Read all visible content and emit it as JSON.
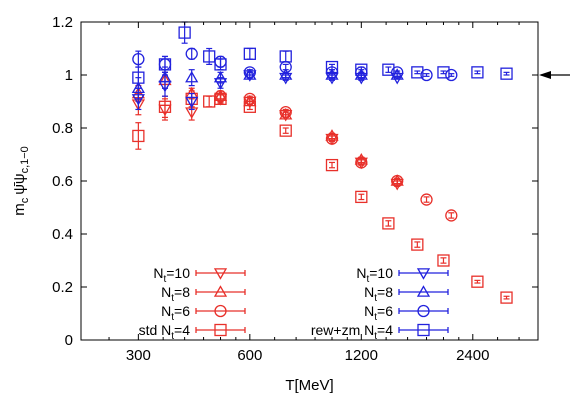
{
  "chart_data": {
    "type": "scatter",
    "xlabel": "T[MeV]",
    "ylabel_parts": {
      "m": "m",
      "c1": "c",
      "psi": "ψ̄ψ",
      "sub": "c,1−0"
    },
    "x_scale": "log",
    "xlim": [
      210,
      3600
    ],
    "ylim": [
      0,
      1.2
    ],
    "x_ticks": [
      300,
      600,
      1200,
      2400
    ],
    "x_tick_labels": [
      "300",
      "600",
      "1200",
      "2400"
    ],
    "y_ticks": [
      0,
      0.2,
      0.4,
      0.6,
      0.8,
      1,
      1.2
    ],
    "y_tick_labels": [
      "0",
      "0.2",
      "0.4",
      "0.6",
      "0.8",
      "1",
      "1.2"
    ],
    "grid": false,
    "reference_arrow_y": 1.0,
    "colors": {
      "std": "#e8302a",
      "rew": "#2222dd"
    },
    "legend": {
      "placement": "bottom",
      "entries": [
        {
          "prefix": "",
          "n": "N",
          "t": "t",
          "rest": "=10",
          "marker": "triangle-down",
          "group": "std"
        },
        {
          "prefix": "",
          "n": "N",
          "t": "t",
          "rest": "=8",
          "marker": "triangle-up",
          "group": "std"
        },
        {
          "prefix": "",
          "n": "N",
          "t": "t",
          "rest": "=6",
          "marker": "circle",
          "group": "std"
        },
        {
          "prefix": "std ",
          "n": "N",
          "t": "t",
          "rest": "=4",
          "marker": "square",
          "group": "std"
        },
        {
          "prefix": "",
          "n": "N",
          "t": "t",
          "rest": "=10",
          "marker": "triangle-down",
          "group": "rew"
        },
        {
          "prefix": "",
          "n": "N",
          "t": "t",
          "rest": "=8",
          "marker": "triangle-up",
          "group": "rew"
        },
        {
          "prefix": "",
          "n": "N",
          "t": "t",
          "rest": "=6",
          "marker": "circle",
          "group": "rew"
        },
        {
          "prefix": "rew+zm ",
          "n": "N",
          "t": "t",
          "rest": "=4",
          "marker": "square",
          "group": "rew"
        }
      ]
    },
    "series": [
      {
        "group": "std",
        "marker": "square",
        "points": [
          [
            300,
            0.77,
            0.05
          ],
          [
            354,
            0.88,
            0.04
          ],
          [
            418,
            0.91,
            0.03
          ],
          [
            466,
            0.9,
            0.02
          ],
          [
            500,
            0.91,
            0.015
          ],
          [
            600,
            0.88,
            0.01
          ],
          [
            750,
            0.79,
            0.01
          ],
          [
            1000,
            0.66,
            0.01
          ],
          [
            1200,
            0.54,
            0.01
          ],
          [
            1420,
            0.44,
            0.01
          ],
          [
            1700,
            0.36,
            0.01
          ],
          [
            2000,
            0.3,
            0.01
          ],
          [
            2470,
            0.22,
            0.005
          ],
          [
            2960,
            0.16,
            0.005
          ]
        ]
      },
      {
        "group": "std",
        "marker": "circle",
        "points": [
          [
            500,
            0.92,
            0.01
          ],
          [
            600,
            0.91,
            0.01
          ],
          [
            750,
            0.86,
            0.01
          ],
          [
            1000,
            0.76,
            0.01
          ],
          [
            1200,
            0.67,
            0.01
          ],
          [
            1500,
            0.6,
            0.01
          ],
          [
            1800,
            0.53,
            0.01
          ],
          [
            2100,
            0.47,
            0.01
          ]
        ]
      },
      {
        "group": "std",
        "marker": "triangle-up",
        "points": [
          [
            300,
            0.93,
            0.03
          ],
          [
            354,
            0.98,
            0.03
          ],
          [
            418,
            0.93,
            0.02
          ],
          [
            500,
            0.92,
            0.02
          ],
          [
            600,
            0.9,
            0.01
          ],
          [
            750,
            0.85,
            0.01
          ],
          [
            1000,
            0.77,
            0.01
          ],
          [
            1200,
            0.68,
            0.01
          ],
          [
            1500,
            0.6,
            0.01
          ]
        ]
      },
      {
        "group": "std",
        "marker": "triangle-down",
        "points": [
          [
            300,
            0.89,
            0.04
          ],
          [
            354,
            0.87,
            0.04
          ],
          [
            418,
            0.86,
            0.03
          ],
          [
            500,
            0.91,
            0.02
          ],
          [
            600,
            0.9,
            0.01
          ],
          [
            750,
            0.85,
            0.01
          ],
          [
            1000,
            0.76,
            0.01
          ],
          [
            1200,
            0.67,
            0.01
          ],
          [
            1500,
            0.59,
            0.01
          ]
        ]
      },
      {
        "group": "rew",
        "marker": "square",
        "points": [
          [
            300,
            0.99,
            0.04
          ],
          [
            354,
            1.04,
            0.03
          ],
          [
            400,
            1.16,
            0.04
          ],
          [
            466,
            1.07,
            0.03
          ],
          [
            500,
            1.04,
            0.02
          ],
          [
            600,
            1.08,
            0.02
          ],
          [
            750,
            1.07,
            0.02
          ],
          [
            1000,
            1.03,
            0.01
          ],
          [
            1200,
            1.02,
            0.01
          ],
          [
            1420,
            1.02,
            0.01
          ],
          [
            1700,
            1.01,
            0.005
          ],
          [
            2000,
            1.01,
            0.005
          ],
          [
            2470,
            1.01,
            0.005
          ],
          [
            2960,
            1.005,
            0.005
          ]
        ]
      },
      {
        "group": "rew",
        "marker": "circle",
        "points": [
          [
            300,
            1.06,
            0.03
          ],
          [
            354,
            1.04,
            0.03
          ],
          [
            418,
            1.08,
            0.02
          ],
          [
            500,
            1.05,
            0.02
          ],
          [
            600,
            1.01,
            0.01
          ],
          [
            750,
            1.03,
            0.01
          ],
          [
            1000,
            1.01,
            0.01
          ],
          [
            1200,
            1.01,
            0.01
          ],
          [
            1500,
            1.01,
            0.005
          ],
          [
            1800,
            1.0,
            0.005
          ],
          [
            2100,
            1.0,
            0.005
          ]
        ]
      },
      {
        "group": "rew",
        "marker": "triangle-up",
        "points": [
          [
            300,
            0.95,
            0.04
          ],
          [
            354,
            0.99,
            0.04
          ],
          [
            418,
            0.99,
            0.03
          ],
          [
            500,
            0.99,
            0.02
          ],
          [
            600,
            1.0,
            0.01
          ],
          [
            750,
            1.0,
            0.01
          ],
          [
            1000,
            1.0,
            0.01
          ],
          [
            1200,
            1.0,
            0.01
          ],
          [
            1500,
            1.0,
            0.005
          ]
        ]
      },
      {
        "group": "rew",
        "marker": "triangle-down",
        "points": [
          [
            300,
            0.91,
            0.04
          ],
          [
            354,
            0.96,
            0.04
          ],
          [
            418,
            0.9,
            0.03
          ],
          [
            500,
            0.97,
            0.02
          ],
          [
            600,
            1.0,
            0.01
          ],
          [
            750,
            0.99,
            0.01
          ],
          [
            1000,
            0.99,
            0.01
          ],
          [
            1200,
            0.99,
            0.01
          ],
          [
            1500,
            0.99,
            0.005
          ]
        ]
      }
    ]
  }
}
